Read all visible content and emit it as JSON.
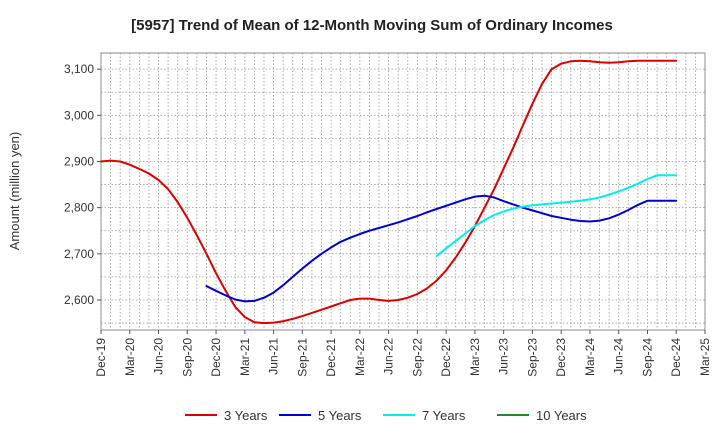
{
  "chart_data": {
    "type": "line",
    "title": "[5957]  Trend of Mean of 12-Month Moving Sum of Ordinary Incomes",
    "ylabel": "Amount (million yen)",
    "xlabel": "",
    "ylim": [
      2535,
      3135
    ],
    "yticks": [
      2600,
      2700,
      2800,
      2900,
      3000,
      3100
    ],
    "ytick_labels": [
      "2,600",
      "2,700",
      "2,800",
      "2,900",
      "3,000",
      "3,100"
    ],
    "xlim": [
      0,
      63
    ],
    "xticks": [
      0,
      3,
      6,
      9,
      12,
      15,
      18,
      21,
      24,
      27,
      30,
      33,
      36,
      39,
      42,
      45,
      48,
      51,
      54,
      57,
      60,
      63
    ],
    "xtick_labels": [
      "Dec-19",
      "Mar-20",
      "Jun-20",
      "Sep-20",
      "Dec-20",
      "Mar-21",
      "Jun-21",
      "Sep-21",
      "Dec-21",
      "Mar-22",
      "Jun-22",
      "Sep-22",
      "Dec-22",
      "Mar-23",
      "Jun-23",
      "Sep-23",
      "Dec-23",
      "Mar-24",
      "Jun-24",
      "Sep-24",
      "Dec-24",
      "Mar-25"
    ],
    "grid": true,
    "legend_position": "bottom",
    "series": [
      {
        "name": "3 Years",
        "color": "#dd0000",
        "x": [
          0,
          1,
          2,
          3,
          4,
          5,
          6,
          7,
          8,
          9,
          10,
          11,
          12,
          13,
          14,
          15,
          16,
          17,
          18,
          19,
          20,
          21,
          22,
          23,
          24,
          25,
          26,
          27,
          28,
          29,
          30,
          31,
          32,
          33,
          34,
          35,
          36,
          37,
          38,
          39,
          40,
          41,
          42,
          43,
          44,
          45,
          46,
          47,
          48,
          49,
          50,
          51,
          52,
          53,
          54,
          55,
          56,
          57,
          58,
          59,
          60
        ],
        "values": [
          2900,
          2902,
          2900,
          2893,
          2884,
          2874,
          2860,
          2840,
          2812,
          2778,
          2740,
          2700,
          2658,
          2620,
          2585,
          2563,
          2552,
          2550,
          2551,
          2554,
          2559,
          2565,
          2572,
          2579,
          2586,
          2593,
          2600,
          2603,
          2603,
          2600,
          2598,
          2600,
          2605,
          2613,
          2625,
          2642,
          2664,
          2692,
          2724,
          2760,
          2800,
          2840,
          2885,
          2930,
          2978,
          3025,
          3068,
          3100,
          3112,
          3117,
          3118,
          3117,
          3115,
          3114,
          3115,
          3117,
          3118,
          3118,
          3118,
          3118,
          3118
        ]
      },
      {
        "name": "5 Years",
        "color": "#0000cc",
        "x": [
          11,
          12,
          13,
          14,
          15,
          16,
          17,
          18,
          19,
          20,
          21,
          22,
          23,
          24,
          25,
          26,
          27,
          28,
          29,
          30,
          31,
          32,
          33,
          34,
          35,
          36,
          37,
          38,
          39,
          40,
          41,
          42,
          43,
          44,
          45,
          46,
          47,
          48,
          49,
          50,
          51,
          52,
          53,
          54,
          55,
          56,
          57,
          58,
          59,
          60
        ],
        "values": [
          2630,
          2620,
          2610,
          2601,
          2597,
          2598,
          2605,
          2616,
          2632,
          2650,
          2668,
          2685,
          2700,
          2714,
          2726,
          2735,
          2743,
          2750,
          2756,
          2762,
          2768,
          2775,
          2782,
          2790,
          2797,
          2804,
          2811,
          2818,
          2824,
          2826,
          2822,
          2814,
          2807,
          2800,
          2794,
          2788,
          2782,
          2778,
          2774,
          2771,
          2770,
          2772,
          2777,
          2785,
          2795,
          2806,
          2815,
          2815,
          2815,
          2815
        ]
      },
      {
        "name": "7 Years",
        "color": "#00eeee",
        "x": [
          35,
          36,
          37,
          38,
          39,
          40,
          41,
          42,
          43,
          44,
          45,
          46,
          47,
          48,
          49,
          50,
          51,
          52,
          53,
          54,
          55,
          56,
          57,
          58,
          59,
          60
        ],
        "values": [
          2695,
          2712,
          2728,
          2744,
          2760,
          2773,
          2784,
          2792,
          2798,
          2802,
          2805,
          2807,
          2809,
          2811,
          2813,
          2815,
          2818,
          2822,
          2828,
          2835,
          2843,
          2852,
          2862,
          2870,
          2870,
          2870
        ]
      },
      {
        "name": "10 Years",
        "color": "#228b22",
        "x": [],
        "values": []
      }
    ]
  }
}
